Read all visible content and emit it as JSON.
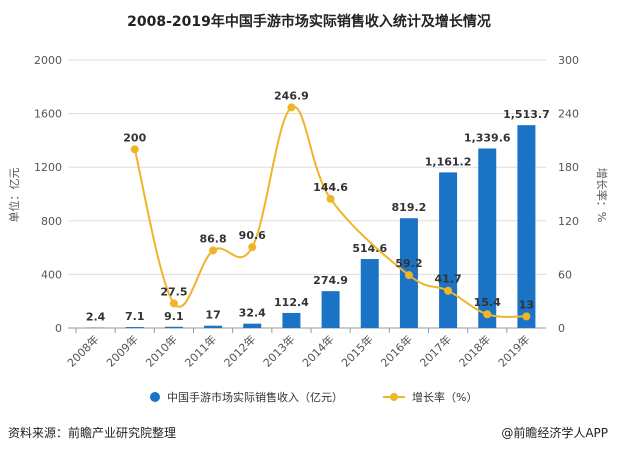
{
  "chart_data": {
    "type": "bar+line",
    "title": "2008-2019年中国手游市场实际销售收入统计及增长情况",
    "categories": [
      "2008年",
      "2009年",
      "2010年",
      "2011年",
      "2012年",
      "2013年",
      "2014年",
      "2015年",
      "2016年",
      "2017年",
      "2018年",
      "2019年"
    ],
    "series": [
      {
        "name": "中国手游市场实际销售收入（亿元）",
        "type": "bar",
        "axis": "left",
        "color": "#1a73c4",
        "values": [
          2.4,
          7.1,
          9.1,
          17,
          32.4,
          112.4,
          274.9,
          514.6,
          819.2,
          1161.2,
          1339.6,
          1513.7
        ],
        "labels": [
          "2.4",
          "7.1",
          "9.1",
          "17",
          "32.4",
          "112.4",
          "274.9",
          "514.6",
          "819.2",
          "1,161.2",
          "1,339.6",
          "1,513.7"
        ]
      },
      {
        "name": "增长率（%）",
        "type": "line",
        "axis": "right",
        "color": "#f0b429",
        "values": [
          null,
          200,
          27.5,
          86.8,
          90.6,
          246.9,
          144.6,
          null,
          59.2,
          41.7,
          15.4,
          13
        ],
        "labels": [
          "",
          "200",
          "27.5",
          "86.8",
          "90.6",
          "246.9",
          "144.6",
          "",
          "59.2",
          "41.7",
          "15.4",
          "13"
        ]
      }
    ],
    "ylabel_left": "单位：亿元",
    "ylabel_right": "增长率：%",
    "ylim_left": [
      0,
      2000
    ],
    "yticks_left": [
      0,
      400,
      800,
      1200,
      1600,
      2000
    ],
    "ylim_right": [
      0,
      300
    ],
    "yticks_right": [
      0,
      60,
      120,
      180,
      240,
      300
    ],
    "grid": true,
    "legend": "bottom"
  },
  "footer": {
    "source": "资料来源：前瞻产业研究院整理",
    "brand": "@前瞻经济学人APP"
  }
}
